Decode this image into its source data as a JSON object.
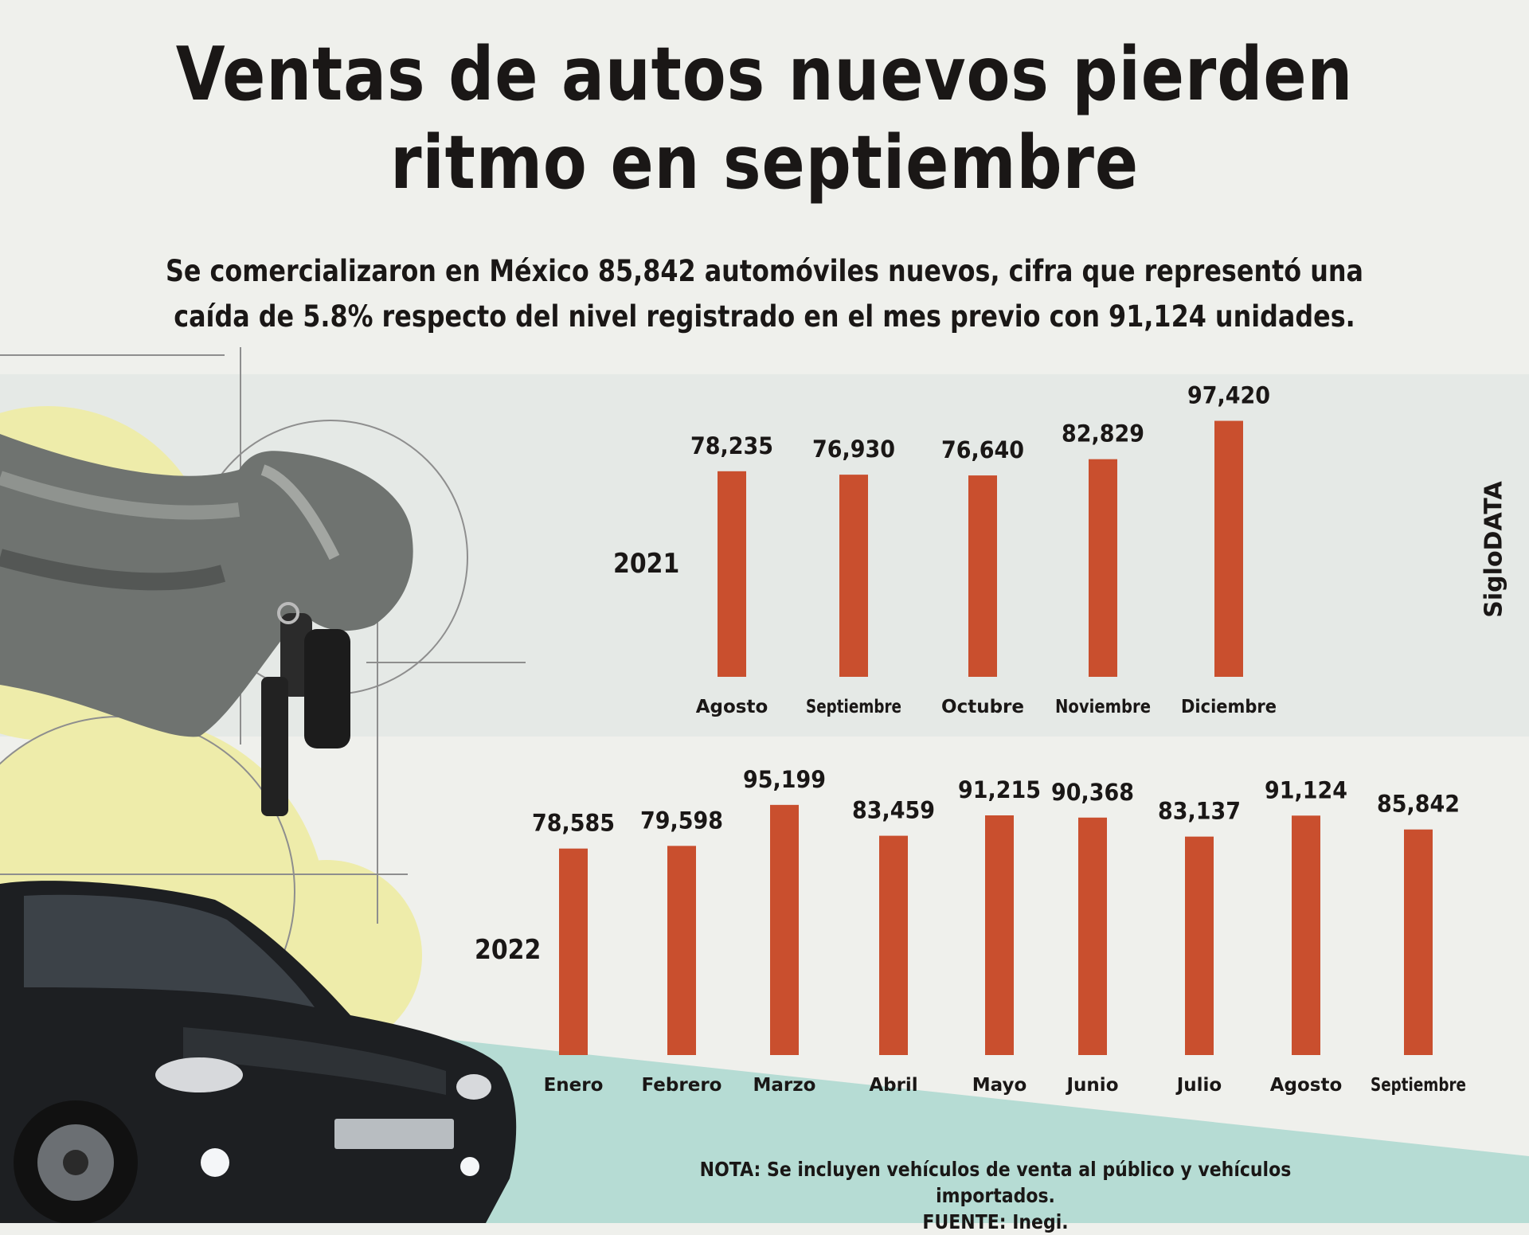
{
  "title_line1": "Ventas de autos nuevos pierden",
  "title_line2": "ritmo en septiembre",
  "subtitle_line1": "Se comercializaron en México 85,842 automóviles nuevos, cifra que representó una",
  "subtitle_line2": "caída de 5.8% respecto del nivel registrado en el mes previo con 91,124 unidades.",
  "brand": "SigloDATA",
  "note": "NOTA: Se incluyen vehículos de venta al público y vehículos importados.",
  "source": "FUENTE: Inegi.",
  "colors": {
    "bar": "#c94f2e",
    "background": "#eff0ec",
    "band": "#e5e9e6",
    "teal": "#b6dcd4",
    "yellow": "#eeecaa"
  },
  "chart_data": [
    {
      "type": "bar",
      "title": "2021",
      "categories": [
        "Agosto",
        "Septiembre",
        "Octubre",
        "Noviembre",
        "Diciembre"
      ],
      "values": [
        78235,
        76930,
        76640,
        82829,
        97420
      ],
      "value_labels": [
        "78,235",
        "76,930",
        "76,640",
        "82,829",
        "97,420"
      ],
      "grid": false
    },
    {
      "type": "bar",
      "title": "2022",
      "categories": [
        "Enero",
        "Febrero",
        "Marzo",
        "Abril",
        "Mayo",
        "Junio",
        "Julio",
        "Agosto",
        "Septiembre"
      ],
      "values": [
        78585,
        79598,
        95199,
        83459,
        91215,
        90368,
        83137,
        91124,
        85842
      ],
      "value_labels": [
        "78,585",
        "79,598",
        "95,199",
        "83,459",
        "91,215",
        "90,368",
        "83,137",
        "91,124",
        "85,842"
      ],
      "grid": false
    }
  ]
}
